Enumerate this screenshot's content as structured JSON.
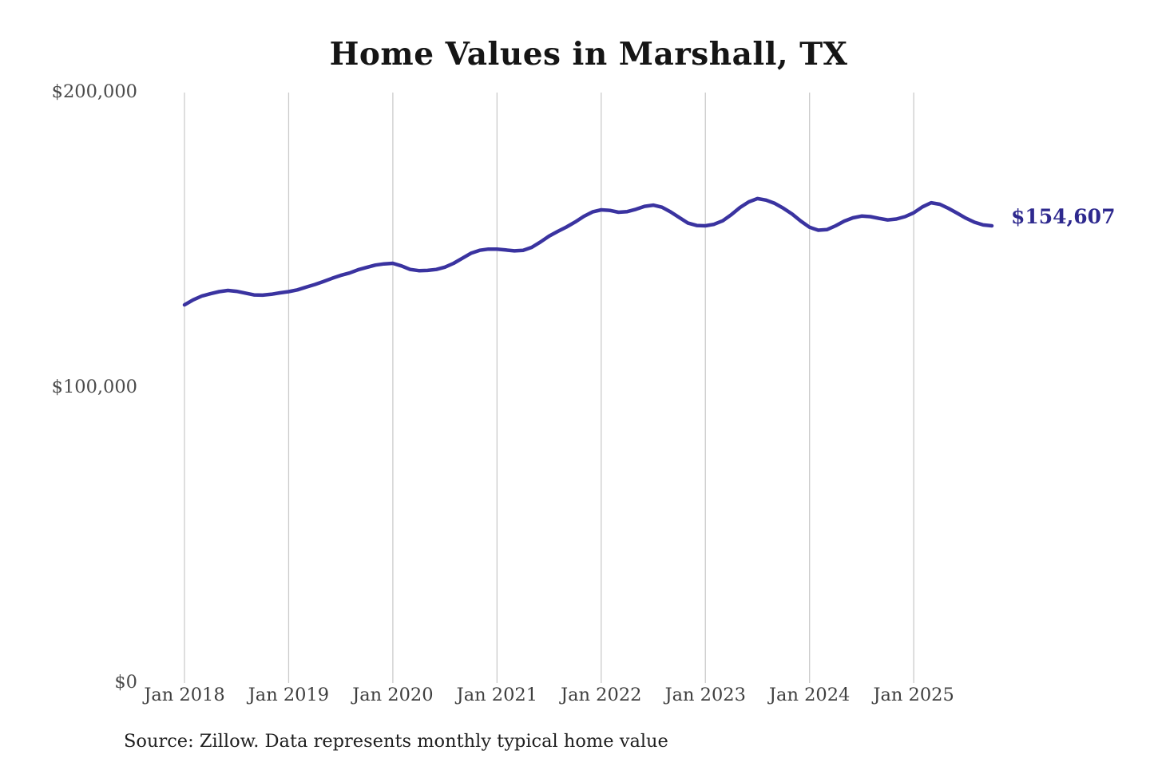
{
  "chart_data": {
    "type": "line",
    "title": "Home Values in Marshall, TX",
    "series_name": "Monthly typical home value",
    "x": [
      "Jan 2018",
      "Feb 2018",
      "Mar 2018",
      "Apr 2018",
      "May 2018",
      "Jun 2018",
      "Jul 2018",
      "Aug 2018",
      "Sep 2018",
      "Oct 2018",
      "Nov 2018",
      "Dec 2018",
      "Jan 2019",
      "Feb 2019",
      "Mar 2019",
      "Apr 2019",
      "May 2019",
      "Jun 2019",
      "Jul 2019",
      "Aug 2019",
      "Sep 2019",
      "Oct 2019",
      "Nov 2019",
      "Dec 2019",
      "Jan 2020",
      "Feb 2020",
      "Mar 2020",
      "Apr 2020",
      "May 2020",
      "Jun 2020",
      "Jul 2020",
      "Aug 2020",
      "Sep 2020",
      "Oct 2020",
      "Nov 2020",
      "Dec 2020",
      "Jan 2021",
      "Feb 2021",
      "Mar 2021",
      "Apr 2021",
      "May 2021",
      "Jun 2021",
      "Jul 2021",
      "Aug 2021",
      "Sep 2021",
      "Oct 2021",
      "Nov 2021",
      "Dec 2021",
      "Jan 2022",
      "Feb 2022",
      "Mar 2022",
      "Apr 2022",
      "May 2022",
      "Jun 2022",
      "Jul 2022",
      "Aug 2022",
      "Sep 2022",
      "Oct 2022",
      "Nov 2022",
      "Dec 2022",
      "Jan 2023",
      "Feb 2023",
      "Mar 2023",
      "Apr 2023",
      "May 2023",
      "Jun 2023",
      "Jul 2023",
      "Aug 2023",
      "Sep 2023",
      "Oct 2023",
      "Nov 2023",
      "Dec 2023",
      "Jan 2024",
      "Feb 2024",
      "Mar 2024",
      "Apr 2024",
      "May 2024",
      "Jun 2024",
      "Jul 2024",
      "Aug 2024",
      "Sep 2024",
      "Oct 2024",
      "Nov 2024",
      "Dec 2024",
      "Jan 2025",
      "Feb 2025",
      "Mar 2025",
      "Apr 2025",
      "May 2025",
      "Jun 2025",
      "Jul 2025",
      "Aug 2025",
      "Sep 2025",
      "Oct 2025"
    ],
    "values": [
      127800,
      129500,
      130800,
      131600,
      132300,
      132700,
      132400,
      131800,
      131200,
      131100,
      131400,
      131900,
      132300,
      132900,
      133800,
      134700,
      135700,
      136800,
      137800,
      138600,
      139700,
      140500,
      141300,
      141700,
      141900,
      141000,
      139800,
      139400,
      139500,
      139800,
      140600,
      141900,
      143600,
      145300,
      146300,
      146700,
      146700,
      146400,
      146100,
      146300,
      147300,
      149100,
      151100,
      152700,
      154200,
      155900,
      157800,
      159300,
      160000,
      159800,
      159200,
      159400,
      160200,
      161200,
      161600,
      160900,
      159300,
      157400,
      155500,
      154700,
      154600,
      155100,
      156300,
      158400,
      160800,
      162700,
      163800,
      163300,
      162200,
      160500,
      158600,
      156200,
      154100,
      153100,
      153300,
      154600,
      156200,
      157300,
      157900,
      157700,
      157100,
      156600,
      156900,
      157700,
      159000,
      161000,
      162400,
      161900,
      160500,
      158900,
      157200,
      155800,
      154900,
      154607
    ],
    "xticks": [
      "Jan 2018",
      "Jan 2019",
      "Jan 2020",
      "Jan 2021",
      "Jan 2022",
      "Jan 2023",
      "Jan 2024",
      "Jan 2025"
    ],
    "yticks": [
      {
        "label": "$0",
        "value": 0
      },
      {
        "label": "$100,000",
        "value": 100000
      },
      {
        "label": "$200,000",
        "value": 200000
      }
    ],
    "ylim": [
      0,
      200000
    ],
    "grid": "vertical-only",
    "legend": "none",
    "end_label": "$154,607",
    "end_value": 154607,
    "source_note": "Source: Zillow. Data represents monthly typical home value",
    "colors": {
      "line": "#3a33a0",
      "grid": "#cbcbcb",
      "end_label_text": "#2e298e",
      "axis_text": "#3f3f3f",
      "title_text": "#151515",
      "source_text": "#1f1f1f",
      "background": "#ffffff"
    }
  }
}
